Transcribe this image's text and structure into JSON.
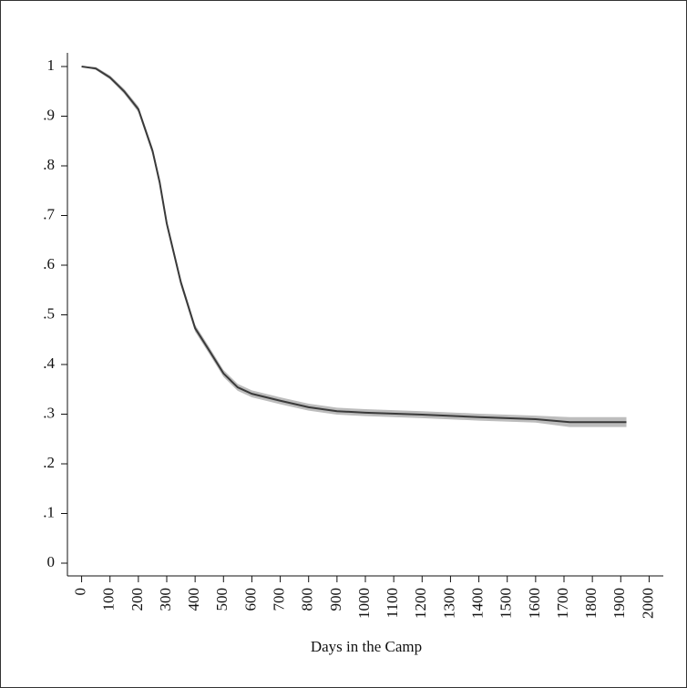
{
  "chart_data": {
    "type": "line",
    "xlabel": "Days in the Camp",
    "x": [
      0,
      50,
      100,
      150,
      200,
      250,
      275,
      300,
      350,
      400,
      450,
      500,
      550,
      600,
      700,
      800,
      900,
      1000,
      1200,
      1400,
      1600,
      1720,
      1920
    ],
    "values": [
      1.0,
      0.996,
      0.978,
      0.95,
      0.914,
      0.83,
      0.767,
      0.684,
      0.565,
      0.473,
      0.428,
      0.382,
      0.354,
      0.341,
      0.327,
      0.314,
      0.306,
      0.303,
      0.299,
      0.294,
      0.29,
      0.284,
      0.284
    ],
    "ci_lower": [
      1.0,
      0.993,
      0.974,
      0.945,
      0.908,
      0.823,
      0.76,
      0.677,
      0.558,
      0.466,
      0.421,
      0.375,
      0.347,
      0.334,
      0.32,
      0.307,
      0.299,
      0.296,
      0.292,
      0.287,
      0.283,
      0.274,
      0.274
    ],
    "ci_upper": [
      1.0,
      0.999,
      0.982,
      0.955,
      0.92,
      0.837,
      0.774,
      0.691,
      0.572,
      0.48,
      0.435,
      0.389,
      0.361,
      0.348,
      0.334,
      0.321,
      0.313,
      0.31,
      0.306,
      0.301,
      0.297,
      0.294,
      0.294
    ],
    "color": "#3a3a3a",
    "band_color": "#bdbdbd",
    "xlim": [
      -50,
      2050
    ],
    "ylim": [
      -0.0257,
      1.0275
    ],
    "xticks": [
      0,
      100,
      200,
      300,
      400,
      500,
      600,
      700,
      800,
      900,
      1000,
      1100,
      1200,
      1300,
      1400,
      1500,
      1600,
      1700,
      1800,
      1900,
      2000
    ],
    "yticks": [
      0,
      {
        "value": 0.1,
        "label": ".1"
      },
      {
        "value": 0.2,
        "label": ".2"
      },
      {
        "value": 0.3,
        "label": ".3"
      },
      {
        "value": 0.4,
        "label": ".4"
      },
      {
        "value": 0.5,
        "label": ".5"
      },
      {
        "value": 0.6,
        "label": ".6"
      },
      {
        "value": 0.7,
        "label": ".7"
      },
      {
        "value": 0.8,
        "label": ".8"
      },
      {
        "value": 0.9,
        "label": ".9"
      },
      1
    ],
    "grid": false
  }
}
